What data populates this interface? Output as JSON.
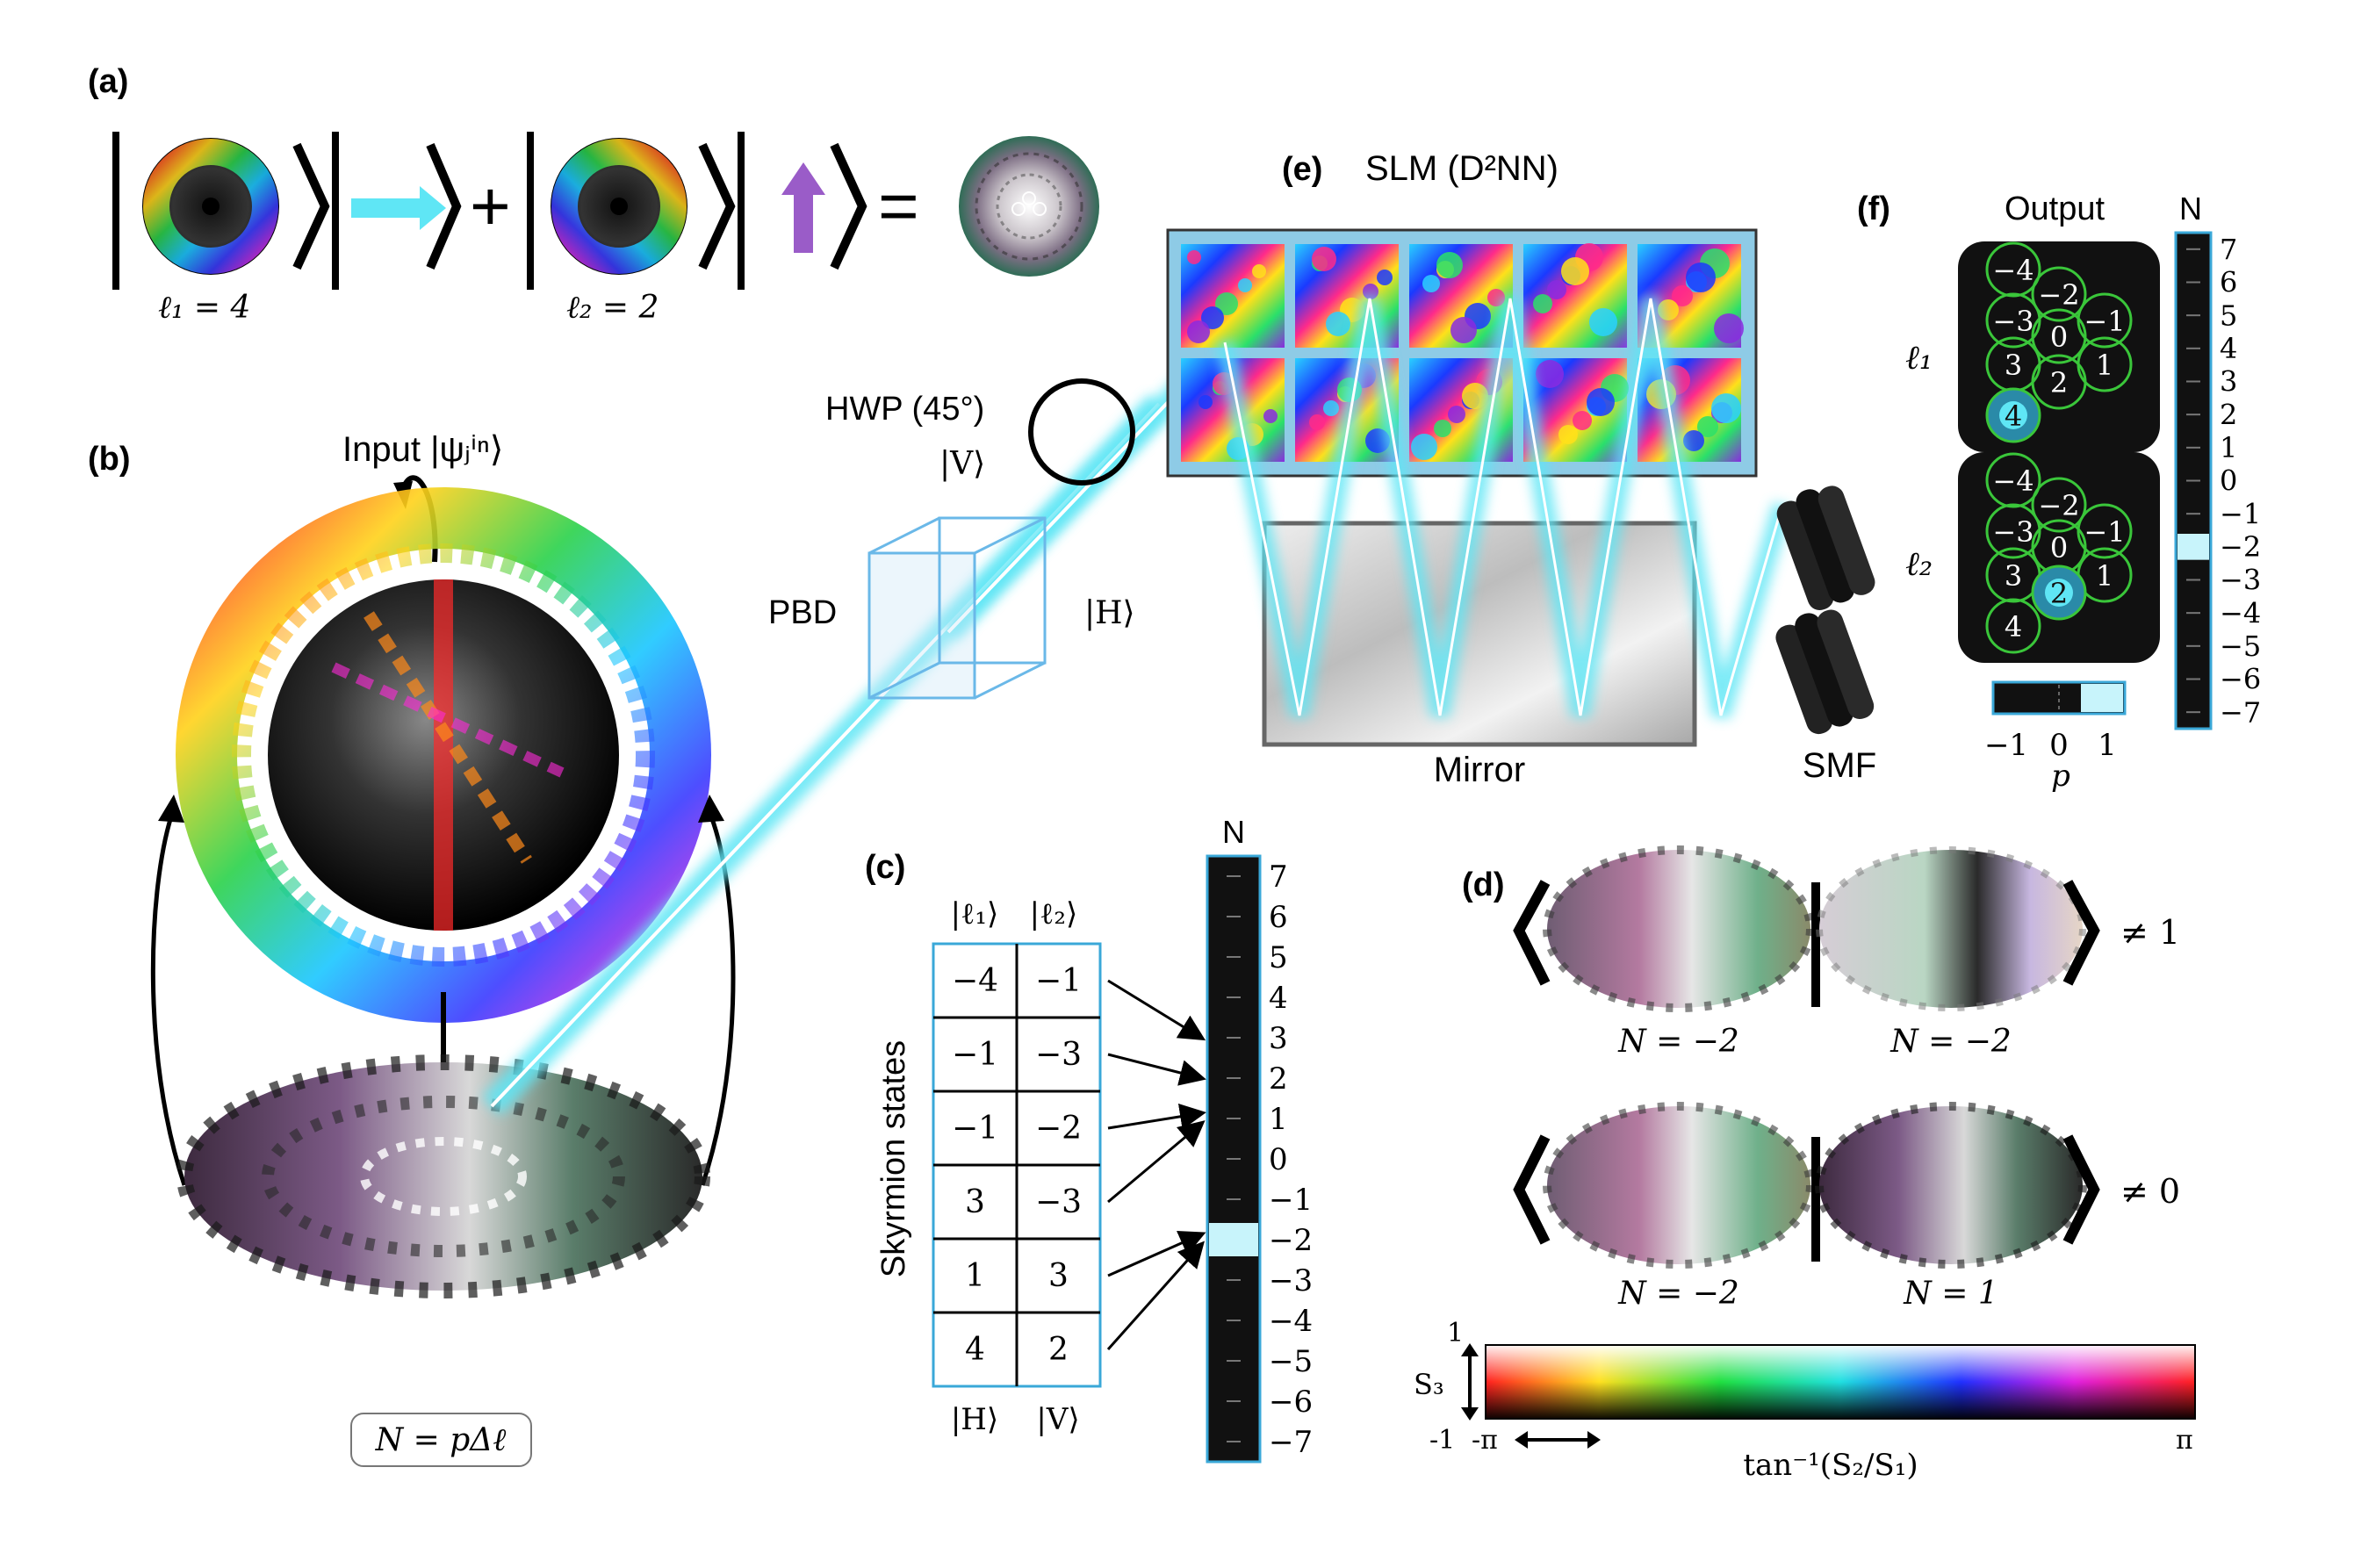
{
  "panel_labels": {
    "a": "(a)",
    "b": "(b)",
    "c": "(c)",
    "d": "(d)",
    "e": "(e)",
    "f": "(f)"
  },
  "panel_a": {
    "l1_label": "ℓ₁ = 4",
    "l2_label": "ℓ₂ = 2"
  },
  "panel_b": {
    "input_label": "Input |ψⱼⁱⁿ⟩",
    "formula": "N = pΔℓ"
  },
  "panel_e": {
    "title": "SLM (D²NN)",
    "hwp": "HWP (45°)",
    "v_state": "|V⟩",
    "h_state": "|H⟩",
    "pbd": "PBD",
    "mirror": "Mirror",
    "smf": "SMF"
  },
  "panel_c": {
    "y_label": "Skyrmion states",
    "col_headers": [
      "|ℓ₁⟩",
      "|ℓ₂⟩"
    ],
    "col_footers": [
      "|H⟩",
      "|V⟩"
    ],
    "rows": [
      [
        "−4",
        "−1"
      ],
      [
        "−1",
        "−3"
      ],
      [
        "−1",
        "−2"
      ],
      [
        "3",
        "−3"
      ],
      [
        "1",
        "3"
      ],
      [
        "4",
        "2"
      ]
    ],
    "bar_title": "N",
    "bar_ticks": [
      "7",
      "6",
      "5",
      "4",
      "3",
      "2",
      "1",
      "0",
      "−1",
      "−2",
      "−3",
      "−4",
      "−5",
      "−6",
      "−7"
    ],
    "highlight": "−2"
  },
  "panel_d": {
    "row1": {
      "left": "N = −2",
      "right": "N = −2",
      "result": "≠ 1"
    },
    "row2": {
      "left": "N = −2",
      "right": "N = 1",
      "result": "≠ 0"
    },
    "colorbar": {
      "s3_top": "1",
      "s3_bottom": "-1",
      "s3_label": "S₃",
      "left": "-π",
      "right": "π",
      "axis_label": "tan⁻¹(S₂/S₁)"
    }
  },
  "panel_f": {
    "title": "Output",
    "row_labels": [
      "ℓ₁",
      "ℓ₂"
    ],
    "detector_values": [
      "−4",
      "−2",
      "−3",
      "0",
      "−1",
      "3",
      "1",
      "2",
      "4"
    ],
    "highlight_l1": "4",
    "highlight_l2": "2",
    "p_labels": [
      "−1",
      "0",
      "1"
    ],
    "p_axis": "p",
    "bar_title": "N",
    "bar_ticks": [
      "7",
      "6",
      "5",
      "4",
      "3",
      "2",
      "1",
      "0",
      "−1",
      "−2",
      "−3",
      "−4",
      "−5",
      "−6",
      "−7"
    ],
    "highlight": "−2"
  },
  "colors": {
    "beam": "#5fe6f5",
    "highlight": "#c8f4fb",
    "ring": "#3ac63a",
    "bar_edge": "#3aa8d8"
  }
}
